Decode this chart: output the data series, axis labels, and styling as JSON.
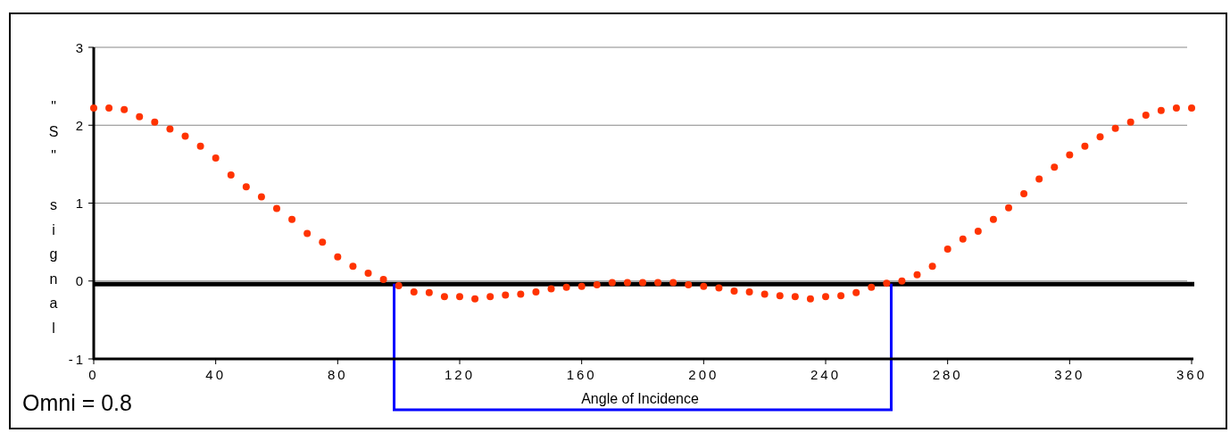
{
  "chart_data": {
    "type": "scatter",
    "xlabel": "Angle of Incidence",
    "ylabel": "\"S\" signal",
    "annotations": [
      "Omni = 0.8"
    ],
    "x": [
      0,
      5,
      10,
      15,
      20,
      25,
      30,
      35,
      40,
      45,
      50,
      55,
      60,
      65,
      70,
      75,
      80,
      85,
      90,
      95,
      100,
      105,
      110,
      115,
      120,
      125,
      130,
      135,
      140,
      145,
      150,
      155,
      160,
      165,
      170,
      175,
      180,
      185,
      190,
      195,
      200,
      205,
      210,
      215,
      220,
      225,
      230,
      235,
      240,
      245,
      250,
      255,
      260,
      265,
      270,
      275,
      280,
      285,
      290,
      295,
      300,
      305,
      310,
      315,
      320,
      325,
      330,
      335,
      340,
      345,
      350,
      355,
      360
    ],
    "series": [
      {
        "color": "#ff3300",
        "values": [
          2.22,
          2.22,
          2.2,
          2.11,
          2.04,
          1.95,
          1.86,
          1.73,
          1.58,
          1.36,
          1.21,
          1.08,
          0.93,
          0.79,
          0.61,
          0.5,
          0.31,
          0.19,
          0.1,
          0.02,
          -0.06,
          -0.14,
          -0.15,
          -0.2,
          -0.2,
          -0.23,
          -0.2,
          -0.18,
          -0.17,
          -0.14,
          -0.1,
          -0.08,
          -0.07,
          -0.05,
          -0.02,
          -0.02,
          -0.02,
          -0.02,
          -0.02,
          -0.05,
          -0.07,
          -0.09,
          -0.13,
          -0.14,
          -0.17,
          -0.19,
          -0.2,
          -0.23,
          -0.2,
          -0.19,
          -0.15,
          -0.08,
          -0.03,
          0.0,
          0.08,
          0.19,
          0.41,
          0.54,
          0.64,
          0.79,
          0.94,
          1.12,
          1.31,
          1.46,
          1.62,
          1.73,
          1.85,
          1.96,
          2.04,
          2.13,
          2.19,
          2.22,
          2.22
        ]
      }
    ],
    "marker": "circle",
    "xlim": [
      0,
      360
    ],
    "xticks": [
      0,
      40,
      80,
      120,
      160,
      200,
      240,
      280,
      320,
      360
    ],
    "ylim": [
      -1,
      3
    ],
    "yticks": [
      -1,
      0,
      1,
      2,
      3
    ],
    "grid": "y",
    "ref_lines": [
      {
        "axis": "y",
        "value": -0.04,
        "color": "#000000"
      },
      {
        "axis": "x",
        "value": 98.5,
        "color": "#0000ff"
      },
      {
        "axis": "x",
        "value": 261.5,
        "color": "#0000ff"
      }
    ]
  }
}
